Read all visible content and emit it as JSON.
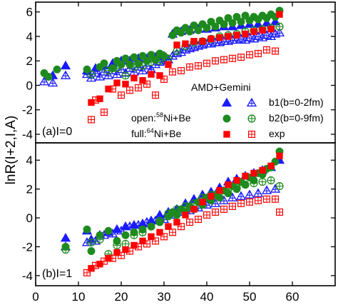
{
  "chart_data": [
    {
      "panel": "top",
      "type": "scatter",
      "panel_label": "(a)I=0",
      "xlim": [
        0,
        70
      ],
      "ylim": [
        -4.7,
        6.8
      ],
      "yticks": [
        -4,
        -2,
        0,
        2,
        4,
        6
      ],
      "legend": {
        "title": "AMD+Gemini",
        "rows": [
          {
            "label_main": "open:",
            "label_sup": "58",
            "label_rest": "Ni+Be"
          },
          {
            "label_main": "full:",
            "label_sup": "64",
            "label_rest": "Ni+Be"
          }
        ],
        "entries": [
          "b1(b=0-2fm)",
          "b2(b=0-9fm)",
          "exp"
        ]
      },
      "series": [
        {
          "name": "b1(b=0-2fm)",
          "marker": "open-triangle",
          "color": "#1a1aff",
          "x": [
            2,
            4,
            7,
            12,
            13,
            14,
            15,
            16,
            17,
            18,
            19,
            20,
            21,
            22,
            23,
            24,
            25,
            26,
            27,
            28,
            29,
            30,
            31,
            32,
            33,
            34,
            35,
            36,
            37,
            38,
            39,
            40,
            41,
            42,
            43,
            44,
            45,
            46,
            47,
            48,
            49,
            50,
            51,
            52,
            53,
            54,
            55,
            56,
            57
          ],
          "y": [
            0.3,
            0.2,
            0.8,
            0.9,
            0.6,
            1.0,
            0.7,
            1.1,
            0.8,
            1.2,
            0.9,
            1.3,
            1.0,
            1.4,
            1.1,
            1.5,
            1.2,
            1.6,
            1.3,
            1.7,
            1.9,
            2.0,
            2.1,
            2.4,
            2.6,
            2.7,
            2.9,
            3.0,
            3.1,
            3.2,
            3.3,
            3.4,
            3.4,
            3.5,
            3.5,
            3.6,
            3.6,
            3.7,
            3.7,
            3.8,
            3.7,
            3.9,
            3.8,
            4.0,
            3.9,
            4.1,
            4.0,
            4.2,
            4.3
          ]
        },
        {
          "name": "b1 full",
          "marker": "filled-triangle",
          "color": "#1a1aff",
          "x": [
            4,
            7,
            12,
            14,
            16,
            18,
            20,
            22,
            24,
            26,
            28,
            30,
            32,
            34,
            36,
            38,
            40,
            42,
            44,
            46,
            48,
            50,
            52,
            54,
            56
          ],
          "y": [
            0.8,
            1.6,
            1.2,
            1.4,
            1.6,
            1.8,
            2.0,
            2.0,
            2.2,
            2.2,
            2.3,
            2.4,
            4.2,
            4.4,
            4.5,
            4.6,
            4.6,
            4.7,
            4.8,
            4.8,
            4.9,
            5.0,
            5.0,
            5.1,
            5.2
          ]
        },
        {
          "name": "b2(b=0-9fm)",
          "marker": "open-circle-cross",
          "color": "#1e8a1e",
          "x": [
            13,
            17,
            19,
            21,
            23,
            25,
            27,
            29,
            31,
            33,
            35,
            37,
            39,
            41,
            43,
            45,
            47,
            49,
            51,
            53,
            55,
            57
          ],
          "y": [
            0.9,
            1.2,
            1.4,
            0.8,
            1.5,
            1.6,
            1.9,
            2.0,
            2.2,
            2.8,
            3.2,
            3.5,
            3.6,
            3.8,
            4.0,
            4.1,
            4.2,
            4.4,
            4.5,
            4.6,
            4.7,
            4.8
          ]
        },
        {
          "name": "b2 full",
          "marker": "filled-circle",
          "color": "#1e8a1e",
          "x": [
            2,
            3,
            5,
            12,
            15,
            16,
            18,
            19,
            20,
            21,
            22,
            23,
            24,
            25,
            26,
            27,
            28,
            29,
            30,
            32,
            33,
            34,
            35,
            36,
            37,
            38,
            39,
            40,
            41,
            42,
            43,
            44,
            45,
            46,
            47,
            48,
            49,
            50,
            51,
            52,
            53,
            54,
            55,
            56,
            57
          ],
          "y": [
            1.0,
            0.7,
            1.3,
            1.3,
            1.5,
            1.8,
            1.4,
            2.0,
            1.7,
            2.2,
            1.7,
            2.3,
            1.8,
            2.4,
            2.0,
            2.5,
            2.1,
            2.6,
            2.4,
            4.1,
            4.5,
            4.3,
            4.7,
            4.4,
            4.9,
            4.5,
            5.0,
            4.7,
            5.2,
            4.8,
            5.3,
            5.0,
            5.5,
            5.1,
            5.6,
            5.2,
            5.7,
            5.3,
            5.6,
            5.4,
            5.7,
            5.5,
            5.8,
            5.6,
            6.1
          ]
        },
        {
          "name": "exp full",
          "marker": "filled-square",
          "color": "#ff0000",
          "x": [
            13,
            15,
            17,
            19,
            21,
            23,
            25,
            27,
            29,
            31,
            33,
            35,
            37,
            39,
            41,
            43,
            45,
            47,
            49,
            51,
            53,
            55,
            57
          ],
          "y": [
            -1.4,
            -1.1,
            -0.3,
            0.2,
            0.1,
            0.6,
            0.4,
            0.9,
            0.8,
            1.7,
            3.3,
            3.4,
            3.6,
            3.6,
            3.8,
            3.9,
            4.0,
            4.1,
            4.2,
            4.4,
            4.5,
            4.6,
            5.8
          ]
        },
        {
          "name": "exp",
          "marker": "open-square-cross",
          "color": "#ff0000",
          "x": [
            13,
            14,
            16,
            18,
            20,
            22,
            24,
            26,
            28,
            30,
            32,
            34,
            36,
            38,
            40,
            42,
            44,
            46,
            48,
            50,
            52,
            54,
            56
          ],
          "y": [
            -2.8,
            -1.2,
            -2.2,
            -0.3,
            -0.8,
            -0.4,
            -0.2,
            0.1,
            -0.8,
            0.5,
            1.1,
            1.2,
            1.5,
            1.6,
            1.8,
            2.0,
            2.1,
            2.2,
            2.3,
            2.5,
            2.6,
            2.9,
            2.8
          ]
        }
      ]
    },
    {
      "panel": "bottom",
      "type": "scatter",
      "panel_label": "(b)I=1",
      "xlim": [
        0,
        70
      ],
      "ylim": [
        -4.7,
        5.2
      ],
      "yticks": [
        -4,
        -2,
        0,
        2,
        4
      ],
      "xticks": [
        0,
        10,
        20,
        30,
        40,
        50,
        60
      ],
      "ylabel": "lnR(I+2,I,A)",
      "series": [
        {
          "name": "b1(b=0-2fm)",
          "marker": "open-triangle",
          "color": "#1a1aff",
          "x": [
            7,
            12,
            14,
            16,
            18,
            20,
            22,
            24,
            26,
            28,
            30,
            32,
            34,
            36,
            38,
            40,
            42,
            44,
            46,
            48,
            50,
            52,
            54,
            56
          ],
          "y": [
            -2.0,
            -1.7,
            -1.6,
            -1.2,
            -1.1,
            -0.9,
            -0.6,
            -0.5,
            -0.3,
            -0.2,
            -0.1,
            0.2,
            0.4,
            0.5,
            0.7,
            0.9,
            1.0,
            1.2,
            1.4,
            1.5,
            1.6,
            1.7,
            1.9,
            2.0
          ]
        },
        {
          "name": "b1 full",
          "marker": "filled-triangle",
          "color": "#1a1aff",
          "x": [
            7,
            12,
            13,
            15,
            17,
            19,
            21,
            23,
            25,
            27,
            29,
            31,
            33,
            35,
            37,
            39,
            41,
            43,
            45,
            47,
            49,
            51,
            53,
            55,
            57
          ],
          "y": [
            -1.4,
            -0.9,
            -1.5,
            -1.2,
            -1.0,
            -0.8,
            -0.6,
            -0.5,
            -0.4,
            -0.2,
            0.2,
            0.4,
            0.6,
            1.0,
            1.3,
            1.6,
            1.8,
            2.1,
            2.5,
            2.7,
            2.9,
            3.1,
            3.3,
            3.5,
            4.0
          ]
        },
        {
          "name": "b2(b=0-9fm)",
          "marker": "open-circle-cross",
          "color": "#1e8a1e",
          "x": [
            7,
            13,
            15,
            17,
            19,
            21,
            23,
            25,
            27,
            29,
            31,
            33,
            35,
            37,
            39,
            41,
            43,
            45,
            47,
            49,
            51,
            53,
            55,
            57
          ],
          "y": [
            -2.2,
            -1.7,
            -1.5,
            -2.5,
            -1.9,
            -1.8,
            -1.2,
            -1.0,
            -0.6,
            -0.2,
            0.3,
            0.6,
            0.8,
            1.0,
            1.4,
            1.6,
            1.8,
            2.0,
            2.1,
            2.3,
            2.4,
            2.5,
            2.6,
            2.2
          ]
        },
        {
          "name": "b2 full",
          "marker": "filled-circle",
          "color": "#1e8a1e",
          "x": [
            7,
            12,
            13,
            15,
            17,
            19,
            21,
            23,
            25,
            27,
            29,
            31,
            32,
            33,
            34,
            35,
            36,
            37,
            38,
            39,
            40,
            41,
            42,
            43,
            44,
            45,
            46,
            47,
            48,
            49,
            50,
            51,
            52,
            53,
            54,
            55,
            56,
            57
          ],
          "y": [
            -2.0,
            -0.8,
            -2.3,
            -1.2,
            -0.9,
            -1.6,
            -1.2,
            -1.0,
            -0.8,
            -0.6,
            -0.3,
            0.1,
            0.4,
            0.2,
            0.6,
            0.4,
            0.8,
            0.6,
            1.1,
            0.9,
            1.4,
            1.2,
            1.6,
            1.4,
            1.9,
            1.7,
            2.2,
            2.0,
            2.5,
            2.3,
            2.8,
            2.6,
            3.1,
            3.0,
            3.4,
            3.5,
            3.9,
            4.6
          ]
        },
        {
          "name": "exp full",
          "marker": "filled-square",
          "color": "#ff0000",
          "x": [
            13,
            15,
            17,
            19,
            21,
            23,
            25,
            27,
            29,
            31,
            33,
            35,
            37,
            39,
            41,
            43,
            45,
            47,
            49,
            51,
            53,
            55,
            57
          ],
          "y": [
            -3.5,
            -3.2,
            -2.8,
            -2.4,
            -2.2,
            -1.9,
            -1.6,
            -1.3,
            -1.0,
            -0.6,
            -0.3,
            0.2,
            0.6,
            1.1,
            1.5,
            1.9,
            2.3,
            2.6,
            2.9,
            3.1,
            3.3,
            3.6,
            4.3
          ]
        },
        {
          "name": "exp",
          "marker": "open-square-cross",
          "color": "#ff0000",
          "x": [
            12,
            14,
            16,
            18,
            20,
            22,
            24,
            26,
            28,
            30,
            32,
            34,
            36,
            38,
            40,
            42,
            44,
            46,
            48,
            50,
            52,
            54,
            56,
            57
          ],
          "y": [
            -3.8,
            -3.3,
            -3.0,
            -2.8,
            -2.6,
            -2.3,
            -2.0,
            -1.8,
            -1.6,
            -1.3,
            -1.0,
            -0.6,
            -0.3,
            -0.1,
            0.2,
            0.4,
            0.6,
            0.8,
            1.0,
            1.1,
            1.2,
            1.3,
            1.3,
            0.4
          ]
        }
      ]
    }
  ]
}
